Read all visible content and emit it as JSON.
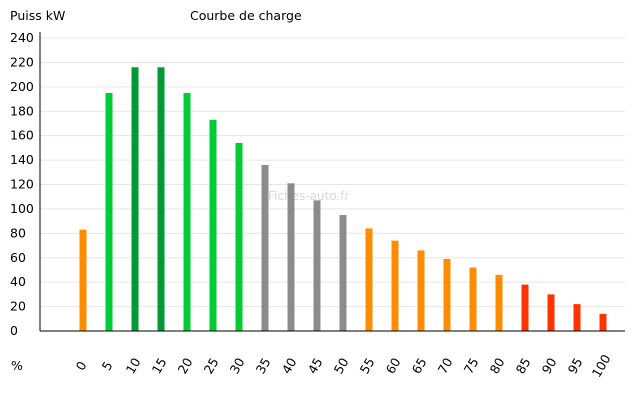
{
  "chart_data": {
    "type": "bar",
    "title": "Courbe de charge",
    "ylabel": "Puiss kW",
    "xlabel": "%",
    "watermark": "Fiches-auto.fr",
    "ylim": [
      0,
      240
    ],
    "yticks": [
      0,
      20,
      40,
      60,
      80,
      100,
      120,
      140,
      160,
      180,
      200,
      220,
      240
    ],
    "categories": [
      "0",
      "5",
      "10",
      "15",
      "20",
      "25",
      "30",
      "35",
      "40",
      "45",
      "50",
      "55",
      "60",
      "65",
      "70",
      "75",
      "80",
      "85",
      "90",
      "95",
      "100"
    ],
    "values": [
      83,
      195,
      216,
      216,
      195,
      173,
      154,
      136,
      121,
      107,
      95,
      84,
      74,
      66,
      59,
      52,
      46,
      38,
      30,
      22,
      14
    ],
    "colors": [
      "#ff8c00",
      "#00cc33",
      "#009933",
      "#009933",
      "#00cc33",
      "#00cc33",
      "#00cc33",
      "#8c8c8c",
      "#8c8c8c",
      "#8c8c8c",
      "#8c8c8c",
      "#ff8c00",
      "#ff8c00",
      "#ff8c00",
      "#ff8c00",
      "#ff8c00",
      "#ff8c00",
      "#ff3300",
      "#ff3300",
      "#ff3300",
      "#ff3300"
    ],
    "grid": true,
    "axis_color": "#000000",
    "grid_color": "#e6e6e6"
  }
}
